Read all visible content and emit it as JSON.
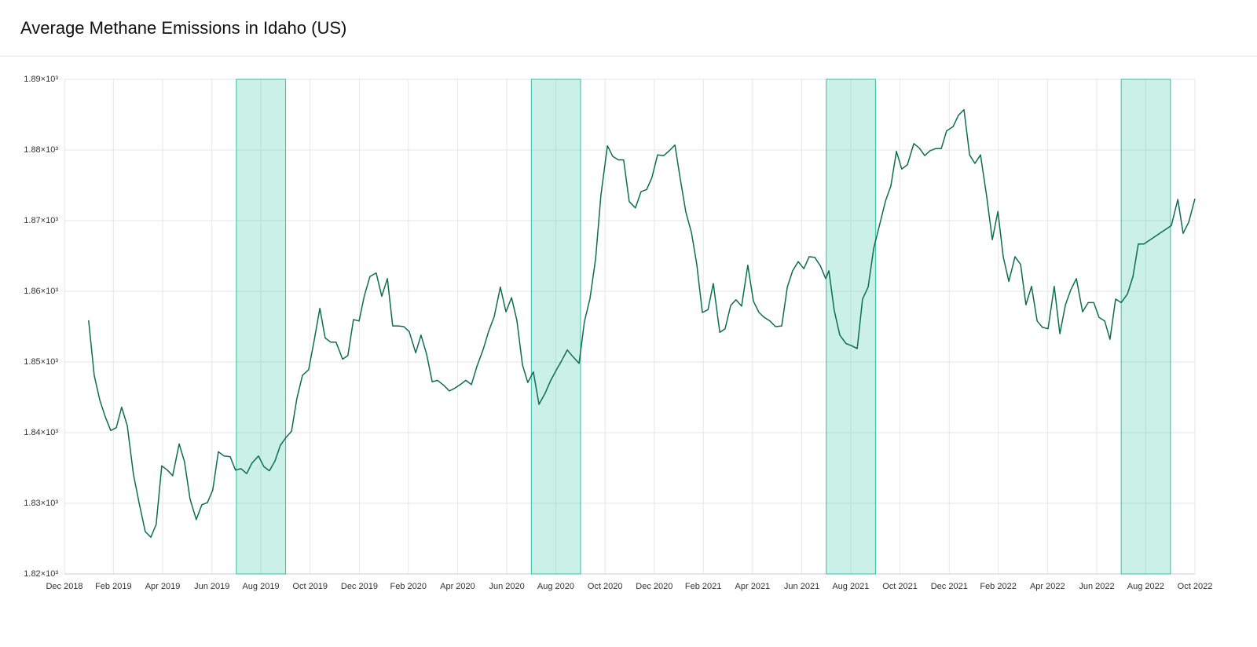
{
  "chart_data": {
    "type": "line",
    "title": "Average Methane Emissions in Idaho (US)",
    "color": "#0b6e4f",
    "shade_color": "#2ec4a0",
    "grid": true,
    "xlim": [
      2018.917,
      2022.75
    ],
    "ylim": [
      1820,
      1890
    ],
    "yticks": [
      {
        "value": 1820,
        "label": "1.82×10³"
      },
      {
        "value": 1830,
        "label": "1.83×10³"
      },
      {
        "value": 1840,
        "label": "1.84×10³"
      },
      {
        "value": 1850,
        "label": "1.85×10³"
      },
      {
        "value": 1860,
        "label": "1.86×10³"
      },
      {
        "value": 1870,
        "label": "1.87×10³"
      },
      {
        "value": 1880,
        "label": "1.88×10³"
      },
      {
        "value": 1890,
        "label": "1.89×10³"
      }
    ],
    "xticks": [
      {
        "value": 2018.917,
        "label": "Dec 2018"
      },
      {
        "value": 2019.083,
        "label": "Feb 2019"
      },
      {
        "value": 2019.25,
        "label": "Apr 2019"
      },
      {
        "value": 2019.417,
        "label": "Jun 2019"
      },
      {
        "value": 2019.583,
        "label": "Aug 2019"
      },
      {
        "value": 2019.75,
        "label": "Oct 2019"
      },
      {
        "value": 2019.917,
        "label": "Dec 2019"
      },
      {
        "value": 2020.083,
        "label": "Feb 2020"
      },
      {
        "value": 2020.25,
        "label": "Apr 2020"
      },
      {
        "value": 2020.417,
        "label": "Jun 2020"
      },
      {
        "value": 2020.583,
        "label": "Aug 2020"
      },
      {
        "value": 2020.75,
        "label": "Oct 2020"
      },
      {
        "value": 2020.917,
        "label": "Dec 2020"
      },
      {
        "value": 2021.083,
        "label": "Feb 2021"
      },
      {
        "value": 2021.25,
        "label": "Apr 2021"
      },
      {
        "value": 2021.417,
        "label": "Jun 2021"
      },
      {
        "value": 2021.583,
        "label": "Aug 2021"
      },
      {
        "value": 2021.75,
        "label": "Oct 2021"
      },
      {
        "value": 2021.917,
        "label": "Dec 2021"
      },
      {
        "value": 2022.083,
        "label": "Feb 2022"
      },
      {
        "value": 2022.25,
        "label": "Apr 2022"
      },
      {
        "value": 2022.417,
        "label": "Jun 2022"
      },
      {
        "value": 2022.583,
        "label": "Aug 2022"
      },
      {
        "value": 2022.75,
        "label": "Oct 2022"
      }
    ],
    "shaded_ranges": [
      [
        2019.5,
        2019.667
      ],
      [
        2020.5,
        2020.667
      ],
      [
        2021.5,
        2021.667
      ],
      [
        2022.5,
        2022.667
      ]
    ],
    "x": [
      2018.999,
      2019.018,
      2019.037,
      2019.055,
      2019.074,
      2019.093,
      2019.111,
      2019.13,
      2019.151,
      2019.17,
      2019.191,
      2019.21,
      2019.228,
      2019.247,
      2019.266,
      2019.284,
      2019.306,
      2019.324,
      2019.343,
      2019.364,
      2019.383,
      2019.402,
      2019.42,
      2019.439,
      2019.458,
      2019.479,
      2019.497,
      2019.516,
      2019.535,
      2019.553,
      2019.575,
      2019.593,
      2019.612,
      2019.631,
      2019.649,
      2019.668,
      2019.687,
      2019.705,
      2019.724,
      2019.745,
      2019.764,
      2019.783,
      2019.801,
      2019.82,
      2019.838,
      2019.86,
      2019.878,
      2019.897,
      2019.916,
      2019.934,
      2019.953,
      2019.974,
      2019.993,
      2020.012,
      2020.03,
      2020.049,
      2020.068,
      2020.086,
      2020.108,
      2020.126,
      2020.145,
      2020.164,
      2020.182,
      2020.203,
      2020.222,
      2020.241,
      2020.259,
      2020.278,
      2020.297,
      2020.315,
      2020.337,
      2020.355,
      2020.374,
      2020.395,
      2020.414,
      2020.433,
      2020.451,
      2020.47,
      2020.488,
      2020.507,
      2020.526,
      2020.547,
      2020.566,
      2020.584,
      2020.603,
      2020.622,
      2020.64,
      2020.662,
      2020.68,
      2020.699,
      2020.718,
      2020.736,
      2020.758,
      2020.776,
      2020.795,
      2020.813,
      2020.832,
      2020.853,
      2020.872,
      2020.891,
      2020.909,
      2020.928,
      2020.949,
      2020.968,
      2020.987,
      2021.005,
      2021.024,
      2021.043,
      2021.061,
      2021.08,
      2021.099,
      2021.117,
      2021.139,
      2021.157,
      2021.176,
      2021.194,
      2021.213,
      2021.234,
      2021.253,
      2021.272,
      2021.29,
      2021.309,
      2021.328,
      2021.349,
      2021.368,
      2021.386,
      2021.405,
      2021.424,
      2021.442,
      2021.461,
      2021.48,
      2021.498,
      2021.509,
      2021.527,
      2021.546,
      2021.567,
      2021.586,
      2021.605,
      2021.623,
      2021.642,
      2021.661,
      2021.682,
      2021.701,
      2021.719,
      2021.738,
      2021.756,
      2021.775,
      2021.797,
      2021.815,
      2021.834,
      2021.852,
      2021.871,
      2021.89,
      2021.908,
      2021.93,
      2021.948,
      2021.967,
      2021.986,
      2022.004,
      2022.023,
      2022.044,
      2022.063,
      2022.082,
      2022.1,
      2022.119,
      2022.14,
      2022.159,
      2022.177,
      2022.196,
      2022.215,
      2022.233,
      2022.252,
      2022.273,
      2022.292,
      2022.311,
      2022.329,
      2022.348,
      2022.369,
      2022.388,
      2022.407,
      2022.425,
      2022.444,
      2022.462,
      2022.481,
      2022.5,
      2022.521,
      2022.54,
      2022.558,
      2022.577,
      2022.67,
      2022.692,
      2022.71,
      2022.729,
      2022.75
    ],
    "values": [
      1855.9,
      1848.1,
      1844.6,
      1842.3,
      1840.3,
      1840.7,
      1843.6,
      1841.0,
      1834.1,
      1830.1,
      1826.0,
      1825.2,
      1827.0,
      1835.3,
      1834.7,
      1833.9,
      1838.4,
      1835.9,
      1830.6,
      1827.7,
      1829.8,
      1830.1,
      1831.9,
      1837.3,
      1836.7,
      1836.6,
      1834.7,
      1834.9,
      1834.2,
      1835.7,
      1836.7,
      1835.2,
      1834.6,
      1836.0,
      1838.2,
      1839.3,
      1840.2,
      1844.8,
      1848.1,
      1848.9,
      1853.1,
      1857.6,
      1853.4,
      1852.8,
      1852.8,
      1850.4,
      1850.9,
      1856.0,
      1855.8,
      1859.4,
      1862.1,
      1862.6,
      1859.3,
      1861.8,
      1855.1,
      1855.1,
      1855.0,
      1854.3,
      1851.3,
      1853.8,
      1851.1,
      1847.2,
      1847.4,
      1846.7,
      1845.9,
      1846.3,
      1846.8,
      1847.4,
      1846.8,
      1849.3,
      1851.8,
      1854.3,
      1856.4,
      1860.6,
      1857.1,
      1859.1,
      1855.9,
      1849.6,
      1847.1,
      1848.6,
      1844.0,
      1845.6,
      1847.4,
      1848.8,
      1850.2,
      1851.7,
      1850.8,
      1849.8,
      1855.7,
      1859.0,
      1864.6,
      1873.6,
      1880.6,
      1879.1,
      1878.6,
      1878.6,
      1872.7,
      1871.8,
      1874.1,
      1874.4,
      1876.1,
      1879.3,
      1879.2,
      1879.9,
      1880.7,
      1875.9,
      1871.2,
      1868.3,
      1863.8,
      1857.0,
      1857.4,
      1861.1,
      1854.2,
      1854.7,
      1858.0,
      1858.8,
      1857.9,
      1863.7,
      1858.6,
      1857.0,
      1856.3,
      1855.8,
      1855.0,
      1855.1,
      1860.6,
      1862.9,
      1864.2,
      1863.2,
      1864.9,
      1864.8,
      1863.6,
      1861.8,
      1862.9,
      1857.3,
      1853.8,
      1852.6,
      1852.3,
      1851.9,
      1858.9,
      1860.6,
      1866.1,
      1869.6,
      1872.8,
      1874.9,
      1879.8,
      1877.3,
      1877.9,
      1880.9,
      1880.3,
      1879.2,
      1879.9,
      1880.2,
      1880.2,
      1882.7,
      1883.3,
      1884.9,
      1885.7,
      1879.3,
      1878.1,
      1879.3,
      1873.4,
      1867.3,
      1871.3,
      1864.9,
      1861.4,
      1864.9,
      1863.8,
      1858.1,
      1860.7,
      1855.8,
      1854.9,
      1854.7,
      1860.7,
      1854.0,
      1858.1,
      1860.2,
      1861.8,
      1857.1,
      1858.4,
      1858.4,
      1856.3,
      1855.8,
      1853.2,
      1858.9,
      1858.4,
      1859.6,
      1862.1,
      1866.7,
      1866.7,
      1869.3,
      1873.0,
      1868.2,
      1869.8,
      1873.1
    ]
  }
}
